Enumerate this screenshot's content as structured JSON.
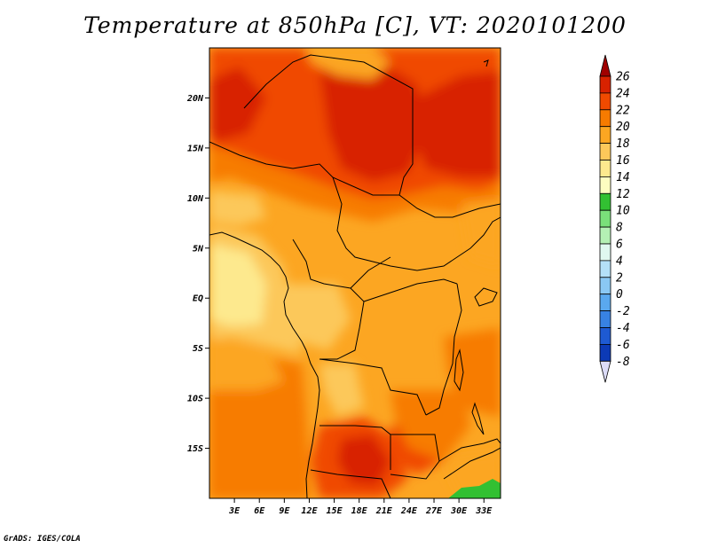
{
  "title": "Temperature at 850hPa [C], VT: 2020101200",
  "credit": "GrADS: IGES/COLA",
  "map": {
    "lon_range": [
      0,
      35
    ],
    "lat_range": [
      -20,
      25
    ],
    "lat_ticks": [
      "20N",
      "15N",
      "10N",
      "5N",
      "EQ",
      "5S",
      "10S",
      "15S"
    ],
    "lon_ticks": [
      "3E",
      "6E",
      "9E",
      "12E",
      "15E",
      "18E",
      "21E",
      "24E",
      "27E",
      "30E",
      "33E"
    ]
  },
  "colorbar": {
    "labels": [
      "26",
      "24",
      "22",
      "20",
      "18",
      "16",
      "14",
      "12",
      "10",
      "8",
      "6",
      "4",
      "2",
      "0",
      "-2",
      "-4",
      "-6",
      "-8"
    ],
    "colors": [
      "#a00000",
      "#d82200",
      "#f04a00",
      "#f77b00",
      "#fca622",
      "#fcc85a",
      "#fde98e",
      "#fdfdc0",
      "#32c032",
      "#7ae07a",
      "#b4f0b4",
      "#e0f8f0",
      "#b4e0f8",
      "#8ac8f4",
      "#5aa8ee",
      "#3882e2",
      "#1e5ad2",
      "#0c3ab6",
      "#08167a",
      "#dcdcf8"
    ]
  }
}
